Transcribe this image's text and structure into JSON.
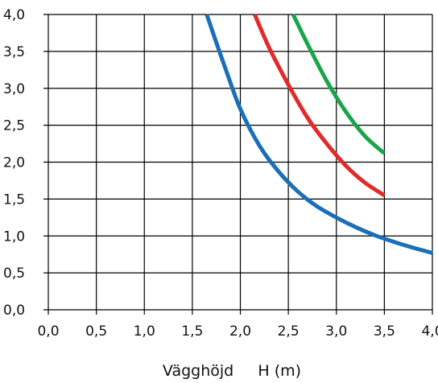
{
  "chart_data": {
    "type": "line",
    "xlabel": "Vägghöjd     H (m)",
    "ylabel": "",
    "xlim": [
      0,
      4
    ],
    "ylim": [
      0,
      4
    ],
    "grid": true,
    "xticks": [
      "0,0",
      "0,5",
      "1,0",
      "1,5",
      "2,0",
      "2,5",
      "3,0",
      "3,5",
      "4,0"
    ],
    "yticks": [
      "0,0",
      "0,5",
      "1,0",
      "1,5",
      "2,0",
      "2,5",
      "3,0",
      "3,5",
      "4,0"
    ],
    "series": [
      {
        "color": "#1a6fb8",
        "x": [
          1.65,
          1.75,
          1.85,
          2.0,
          2.2,
          2.4,
          2.6,
          2.8,
          3.0,
          3.2,
          3.4,
          3.6,
          3.8,
          4.0
        ],
        "y": [
          4.0,
          3.62,
          3.25,
          2.72,
          2.22,
          1.87,
          1.6,
          1.4,
          1.25,
          1.12,
          1.01,
          0.92,
          0.84,
          0.77
        ]
      },
      {
        "color": "#e02b2b",
        "x": [
          2.15,
          2.3,
          2.5,
          2.7,
          2.9,
          3.1,
          3.3,
          3.5
        ],
        "y": [
          4.0,
          3.55,
          3.05,
          2.6,
          2.25,
          1.95,
          1.72,
          1.55
        ]
      },
      {
        "color": "#1aa54a",
        "x": [
          2.55,
          2.7,
          2.9,
          3.1,
          3.3,
          3.5
        ],
        "y": [
          4.0,
          3.6,
          3.1,
          2.68,
          2.35,
          2.12
        ]
      }
    ]
  }
}
